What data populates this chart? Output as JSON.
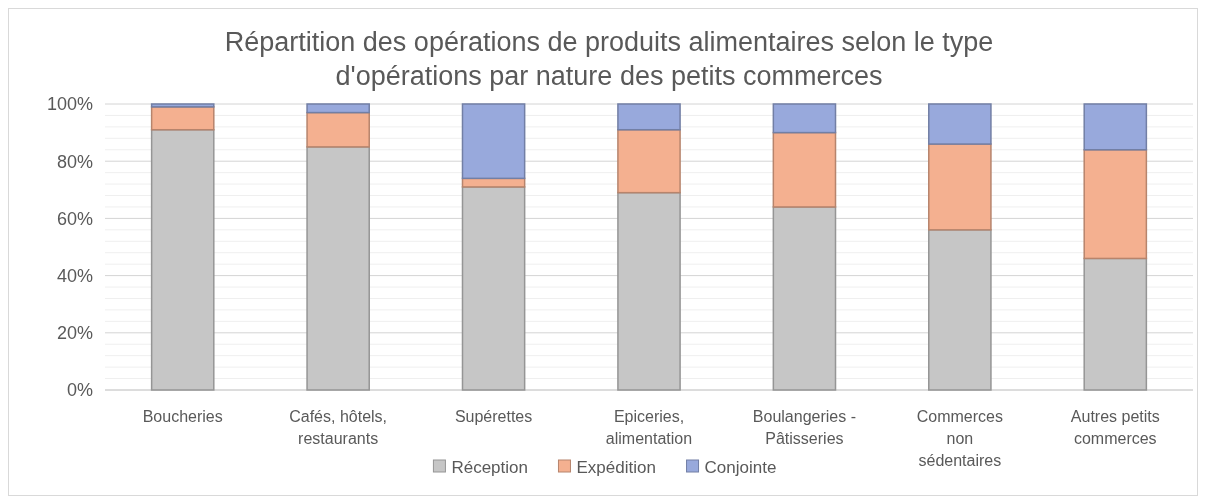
{
  "chart_data": {
    "type": "bar",
    "stacked": true,
    "title": "Répartition des opérations de produits alimentaires selon le type d'opérations par nature des petits commerces",
    "categories": [
      "Boucheries",
      "Cafés, hôtels, restaurants",
      "Supérettes",
      "Epiceries, alimentation",
      "Boulangeries - Pâtisseries",
      "Commerces non sédentaires",
      "Autres petits commerces"
    ],
    "series": [
      {
        "name": "Réception",
        "color": "#c6c6c6",
        "values": [
          91,
          85,
          71,
          69,
          64,
          56,
          46
        ]
      },
      {
        "name": "Expédition",
        "color": "#f4b090",
        "values": [
          8,
          12,
          3,
          22,
          26,
          30,
          38
        ]
      },
      {
        "name": "Conjointe",
        "color": "#98a9dc",
        "values": [
          1,
          3,
          26,
          9,
          10,
          14,
          16
        ]
      }
    ],
    "ylim": [
      0,
      100
    ],
    "yticks": [
      {
        "value": 0,
        "label": "0%"
      },
      {
        "value": 4,
        "label": null
      },
      {
        "value": 8,
        "label": null
      },
      {
        "value": 12,
        "label": null
      },
      {
        "value": 16,
        "label": null
      },
      {
        "value": 20,
        "label": "20%"
      },
      {
        "value": 24,
        "label": null
      },
      {
        "value": 28,
        "label": null
      },
      {
        "value": 32,
        "label": null
      },
      {
        "value": 36,
        "label": null
      },
      {
        "value": 40,
        "label": "40%"
      },
      {
        "value": 44,
        "label": null
      },
      {
        "value": 48,
        "label": null
      },
      {
        "value": 52,
        "label": null
      },
      {
        "value": 56,
        "label": null
      },
      {
        "value": 60,
        "label": "60%"
      },
      {
        "value": 64,
        "label": null
      },
      {
        "value": 68,
        "label": null
      },
      {
        "value": 72,
        "label": null
      },
      {
        "value": 76,
        "label": null
      },
      {
        "value": 80,
        "label": "80%"
      },
      {
        "value": 84,
        "label": null
      },
      {
        "value": 88,
        "label": null
      },
      {
        "value": 92,
        "label": null
      },
      {
        "value": 96,
        "label": null
      },
      {
        "value": 100,
        "label": "100%"
      }
    ],
    "grid": true,
    "legend": "bottom"
  }
}
